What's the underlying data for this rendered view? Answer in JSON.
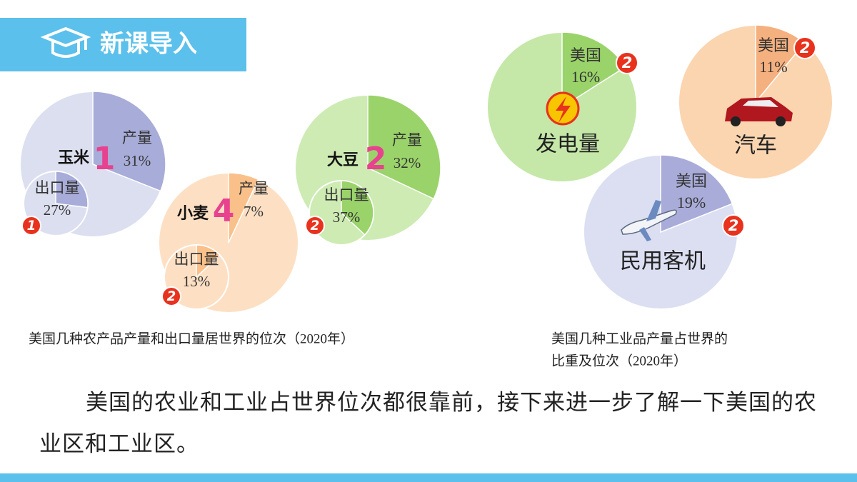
{
  "header": {
    "title": "新课导入"
  },
  "agriculture": {
    "caption": "美国几种农产品产量和出口量居世界的位次（2020年）",
    "crops": [
      {
        "name": "玉米",
        "rank": 1,
        "production": {
          "label": "产量",
          "value": 31,
          "value_label": "31%"
        },
        "export": {
          "label": "出口量",
          "value": 27,
          "value_label": "27%",
          "rank": 1
        }
      },
      {
        "name": "小麦",
        "rank": 4,
        "production": {
          "label": "产量",
          "value": 7,
          "value_label": "7%"
        },
        "export": {
          "label": "出口量",
          "value": 13,
          "value_label": "13%",
          "rank": 2
        }
      },
      {
        "name": "大豆",
        "rank": 2,
        "production": {
          "label": "产量",
          "value": 32,
          "value_label": "32%"
        },
        "export": {
          "label": "出口量",
          "value": 37,
          "value_label": "37%",
          "rank": 2
        }
      }
    ]
  },
  "industry": {
    "caption_lines": [
      "美国几种工业品产量占世界的",
      "比重及位次（2020年）"
    ],
    "products": [
      {
        "name": "发电量",
        "country": "美国",
        "value": 16,
        "value_label": "16%",
        "rank": 2
      },
      {
        "name": "汽车",
        "country": "美国",
        "value": 11,
        "value_label": "11%",
        "rank": 2
      },
      {
        "name": "民用客机",
        "country": "美国",
        "value": 19,
        "value_label": "19%",
        "rank": 2
      }
    ]
  },
  "paragraph": "美国的农业和工业占世界位次都很靠前，接下来进一步了解一下美国的农业区和工业区。"
}
